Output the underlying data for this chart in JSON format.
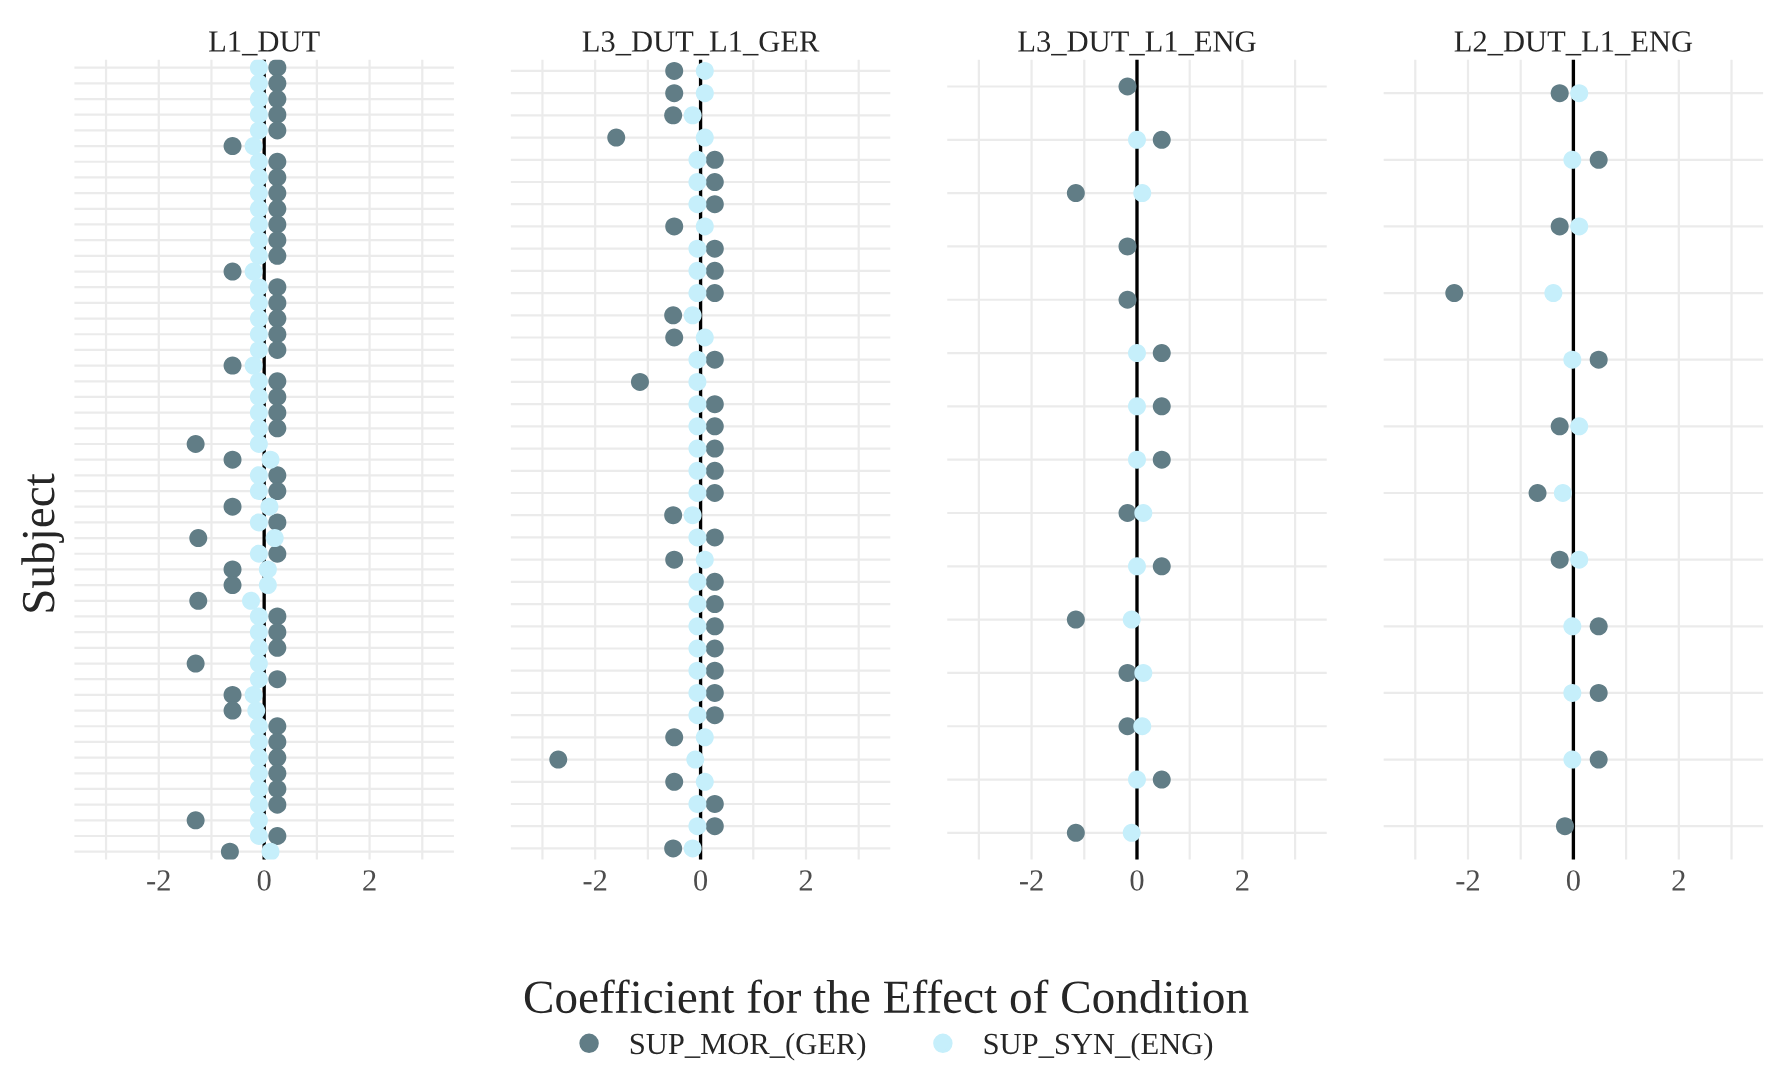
{
  "chart_data": [
    {
      "type": "scatter",
      "orientation": "horizontal",
      "title": "L1_DUT",
      "xlabel": "Coefficient for the Effect of Condition",
      "ylabel": "Subject",
      "legend": "bottom",
      "grid": true,
      "marker": "circle",
      "xlim": [
        -3.6,
        3.6
      ],
      "xticks": [
        {
          "value": -3,
          "label": null
        },
        -2,
        {
          "value": -1,
          "label": null
        },
        0,
        {
          "value": 1,
          "label": null
        },
        2,
        {
          "value": 3,
          "label": null
        }
      ],
      "ref_lines": [
        {
          "axis": "x",
          "value": 0,
          "color": "#000000"
        }
      ],
      "categories": [
        null,
        null,
        null,
        null,
        null,
        null,
        null,
        null,
        null,
        null,
        null,
        null,
        null,
        null,
        null,
        null,
        null,
        null,
        null,
        null,
        null,
        null,
        null,
        null,
        null,
        null,
        null,
        null,
        null,
        null,
        null,
        null,
        null,
        null,
        null,
        null,
        null,
        null,
        null,
        null,
        null,
        null,
        null,
        null,
        null,
        null,
        null,
        null,
        null,
        null,
        null
      ],
      "series": [
        {
          "name": "SUP_MOR_(GER)",
          "color": "#617d86",
          "values": [
            0.25,
            0.25,
            0.25,
            0.25,
            0.25,
            -0.6,
            0.25,
            0.25,
            0.25,
            0.25,
            0.25,
            0.25,
            0.25,
            -0.6,
            0.25,
            0.25,
            0.25,
            0.25,
            0.25,
            -0.6,
            0.25,
            0.25,
            0.25,
            0.25,
            -1.3,
            -0.6,
            0.25,
            0.25,
            -0.6,
            0.25,
            -1.25,
            0.25,
            -0.6,
            -0.6,
            -1.25,
            0.25,
            0.25,
            0.25,
            -1.3,
            0.25,
            -0.6,
            -0.6,
            0.25,
            0.25,
            0.25,
            0.25,
            0.25,
            0.25,
            -1.3,
            0.25,
            -0.65
          ]
        },
        {
          "name": "SUP_SYN_(ENG)",
          "color": "#c6effb",
          "values": [
            -0.1,
            -0.1,
            -0.1,
            -0.1,
            -0.1,
            -0.2,
            -0.1,
            -0.1,
            -0.1,
            -0.1,
            -0.1,
            -0.1,
            -0.1,
            -0.2,
            -0.1,
            -0.1,
            -0.1,
            -0.1,
            -0.1,
            -0.2,
            -0.1,
            -0.1,
            -0.1,
            -0.1,
            -0.1,
            0.12,
            -0.1,
            -0.1,
            0.1,
            -0.1,
            0.2,
            -0.1,
            0.07,
            0.07,
            -0.25,
            -0.1,
            -0.1,
            -0.1,
            -0.1,
            -0.1,
            -0.2,
            -0.15,
            -0.1,
            -0.1,
            -0.1,
            -0.1,
            -0.1,
            -0.1,
            -0.1,
            -0.1,
            0.12
          ]
        }
      ]
    },
    {
      "type": "scatter",
      "orientation": "horizontal",
      "title": "L3_DUT_L1_GER",
      "grid": true,
      "marker": "circle",
      "tick_labels": "x",
      "xlim": [
        -3.6,
        3.6
      ],
      "xticks": [
        {
          "value": -3,
          "label": null
        },
        -2,
        {
          "value": -1,
          "label": null
        },
        0,
        {
          "value": 1,
          "label": null
        },
        2,
        {
          "value": 3,
          "label": null
        }
      ],
      "ref_lines": [
        {
          "axis": "x",
          "value": 0,
          "color": "#000000"
        }
      ],
      "categories": [
        null,
        null,
        null,
        null,
        null,
        null,
        null,
        null,
        null,
        null,
        null,
        null,
        null,
        null,
        null,
        null,
        null,
        null,
        null,
        null,
        null,
        null,
        null,
        null,
        null,
        null,
        null,
        null,
        null,
        null,
        null,
        null,
        null,
        null,
        null,
        null
      ],
      "series": [
        {
          "color": "#617d86",
          "values": [
            -0.5,
            -0.5,
            -0.52,
            -1.6,
            0.27,
            0.27,
            0.27,
            -0.5,
            0.27,
            0.27,
            0.27,
            -0.52,
            -0.5,
            0.27,
            -1.15,
            0.27,
            0.27,
            0.27,
            0.27,
            0.27,
            -0.52,
            0.27,
            -0.5,
            0.27,
            0.27,
            0.27,
            0.27,
            0.27,
            0.27,
            0.27,
            -0.5,
            -2.7,
            -0.5,
            0.27,
            0.27,
            -0.52
          ]
        },
        {
          "color": "#c6effb",
          "values": [
            0.08,
            0.08,
            -0.15,
            0.08,
            -0.06,
            -0.06,
            -0.06,
            0.08,
            -0.06,
            -0.06,
            -0.06,
            -0.15,
            0.08,
            -0.06,
            -0.06,
            -0.06,
            -0.06,
            -0.06,
            -0.06,
            -0.06,
            -0.15,
            -0.06,
            0.08,
            -0.06,
            -0.06,
            -0.06,
            -0.06,
            -0.06,
            -0.06,
            -0.06,
            0.08,
            -0.1,
            0.08,
            -0.06,
            -0.06,
            -0.15
          ]
        }
      ]
    },
    {
      "type": "scatter",
      "orientation": "horizontal",
      "title": "L3_DUT_L1_ENG",
      "grid": true,
      "marker": "circle",
      "tick_labels": "x",
      "xlim": [
        -3.6,
        3.6
      ],
      "xticks": [
        {
          "value": -3,
          "label": null
        },
        -2,
        {
          "value": -1,
          "label": null
        },
        0,
        {
          "value": 1,
          "label": null
        },
        2,
        {
          "value": 3,
          "label": null
        }
      ],
      "ref_lines": [
        {
          "axis": "x",
          "value": 0,
          "color": "#000000"
        }
      ],
      "categories": [
        null,
        null,
        null,
        null,
        null,
        null,
        null,
        null,
        null,
        null,
        null,
        null,
        null,
        null,
        null
      ],
      "series": [
        {
          "color": "#617d86",
          "values": [
            -0.18,
            0.47,
            -1.16,
            -0.18,
            -0.18,
            0.47,
            0.47,
            0.47,
            -0.18,
            0.47,
            -1.16,
            -0.18,
            -0.18,
            0.47,
            -1.16
          ]
        },
        {
          "color": "#c6effb",
          "values": [
            null,
            0,
            0.1,
            null,
            null,
            0,
            0,
            0,
            0.12,
            0,
            -0.1,
            0.12,
            0.1,
            0,
            -0.1
          ]
        }
      ]
    },
    {
      "type": "scatter",
      "orientation": "horizontal",
      "title": "L2_DUT_L1_ENG",
      "grid": true,
      "marker": "circle",
      "tick_labels": "x",
      "xlim": [
        -3.6,
        3.6
      ],
      "xticks": [
        {
          "value": -3,
          "label": null
        },
        -2,
        {
          "value": -1,
          "label": null
        },
        0,
        {
          "value": 1,
          "label": null
        },
        2,
        {
          "value": 3,
          "label": null
        }
      ],
      "ref_lines": [
        {
          "axis": "x",
          "value": 0,
          "color": "#000000"
        }
      ],
      "categories": [
        null,
        null,
        null,
        null,
        null,
        null,
        null,
        null,
        null,
        null,
        null,
        null
      ],
      "series": [
        {
          "color": "#617d86",
          "values": [
            -0.26,
            0.48,
            -0.26,
            -2.26,
            0.48,
            -0.26,
            -0.68,
            -0.26,
            0.48,
            0.48,
            0.48,
            -0.16
          ]
        },
        {
          "color": "#c6effb",
          "values": [
            0.11,
            -0.02,
            0.11,
            -0.38,
            -0.02,
            0.11,
            -0.2,
            0.11,
            -0.02,
            -0.02,
            -0.02,
            null
          ]
        }
      ]
    }
  ]
}
